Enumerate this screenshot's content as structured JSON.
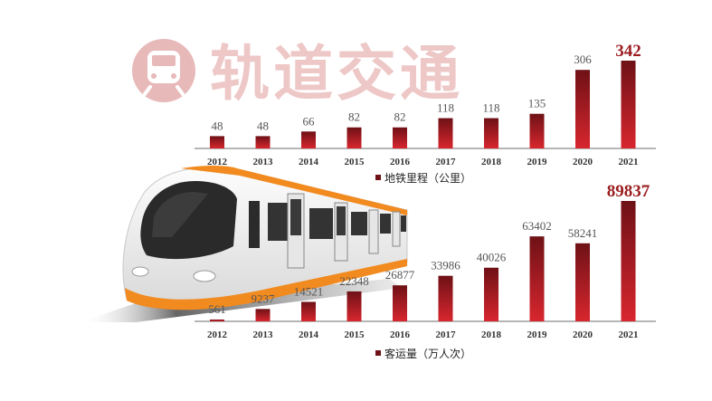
{
  "title": "轨道交通",
  "colors": {
    "bar_top": "#6e1116",
    "bar_bottom": "#d8262e",
    "value_text": "#555555",
    "highlight_text": "#9b1d20",
    "axis": "#8a8a8a",
    "title_pink": "#eec7c7",
    "train_orange": "#f18a1f",
    "train_body": "#f1f1f1"
  },
  "train_icon": "train-icon",
  "chart_data": [
    {
      "type": "bar",
      "series_label": "地铁里程（公里）",
      "categories": [
        "2012",
        "2013",
        "2014",
        "2015",
        "2016",
        "2017",
        "2018",
        "2019",
        "2020",
        "2021"
      ],
      "values": [
        48,
        48,
        66,
        82,
        82,
        118,
        118,
        135,
        306,
        342
      ],
      "value_labels": [
        "48",
        "48",
        "66",
        "82",
        "82",
        "118",
        "118",
        "135",
        "306",
        "342"
      ],
      "highlight_index": 9,
      "ylim": [
        0,
        342
      ]
    },
    {
      "type": "bar",
      "series_label": "客运量（万人次）",
      "categories": [
        "2012",
        "2013",
        "2014",
        "2015",
        "2016",
        "2017",
        "2018",
        "2019",
        "2020",
        "2021"
      ],
      "values": [
        561,
        9237,
        14521,
        22348,
        26877,
        33986,
        40026,
        63402,
        58241,
        89837
      ],
      "value_labels": [
        "561",
        "9237",
        "14521",
        "22348",
        "26877",
        "33986",
        "40026",
        "63402",
        "58241",
        "89837"
      ],
      "highlight_index": 9,
      "ylim": [
        0,
        89837
      ]
    }
  ]
}
